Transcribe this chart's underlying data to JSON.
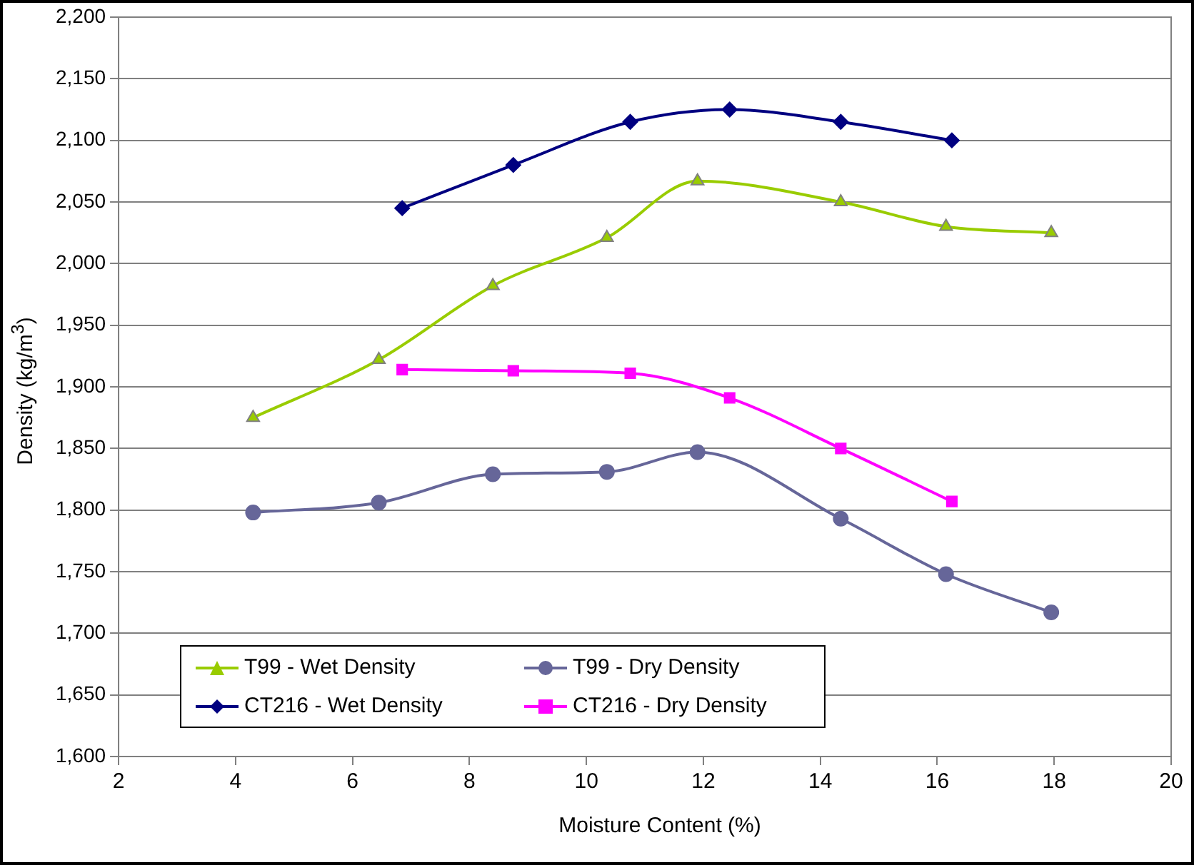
{
  "chart_data": {
    "type": "line",
    "xlabel": "Moisture Content (%)",
    "ylabel": "Density (kg/m$^{3}$)",
    "xlim": [
      2,
      20
    ],
    "xticks": [
      2,
      4,
      6,
      8,
      10,
      12,
      14,
      16,
      18,
      20
    ],
    "ylim": [
      1600,
      2200
    ],
    "yticks": [
      {
        "value": 1600,
        "label": "1,600"
      },
      {
        "value": 1650,
        "label": "1,650"
      },
      {
        "value": 1700,
        "label": "1,700"
      },
      {
        "value": 1750,
        "label": "1,750"
      },
      {
        "value": 1800,
        "label": "1,800"
      },
      {
        "value": 1850,
        "label": "1,850"
      },
      {
        "value": 1900,
        "label": "1,900"
      },
      {
        "value": 1950,
        "label": "1,950"
      },
      {
        "value": 2000,
        "label": "2,000"
      },
      {
        "value": 2050,
        "label": "2,050"
      },
      {
        "value": 2100,
        "label": "2,100"
      },
      {
        "value": 2150,
        "label": "2,150"
      },
      {
        "value": 2200,
        "label": "2,200"
      }
    ],
    "grid": "y",
    "legend": "bottom left",
    "series": [
      {
        "name": "T99 - Wet Density",
        "color": "#99cc00",
        "marker": "triangle",
        "x": [
          4.3,
          6.45,
          8.4,
          10.35,
          11.9,
          14.35,
          16.15,
          17.95
        ],
        "values": [
          1875,
          1922,
          1982,
          2021,
          2067,
          2050,
          2030,
          2025
        ]
      },
      {
        "name": "T99 - Dry Density",
        "color": "#666699",
        "marker": "circle",
        "x": [
          4.3,
          6.45,
          8.4,
          10.35,
          11.9,
          14.35,
          16.15,
          17.95
        ],
        "values": [
          1798,
          1806,
          1829,
          1831,
          1847,
          1793,
          1748,
          1717
        ]
      },
      {
        "name": "CT216 - Wet Density",
        "color": "#000080",
        "marker": "diamond",
        "x": [
          6.85,
          8.75,
          10.75,
          12.45,
          14.35,
          16.25
        ],
        "values": [
          2045,
          2080,
          2115,
          2125,
          2115,
          2100
        ]
      },
      {
        "name": "CT216 - Dry Density",
        "color": "#ff00ff",
        "marker": "square",
        "x": [
          6.85,
          8.75,
          10.75,
          12.45,
          14.35,
          16.25
        ],
        "values": [
          1914,
          1913,
          1911,
          1891,
          1850,
          1807
        ]
      }
    ]
  }
}
